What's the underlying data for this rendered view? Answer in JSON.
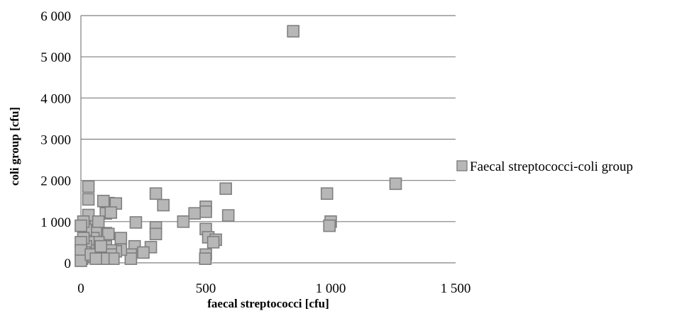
{
  "chart_data": {
    "type": "scatter",
    "title": "",
    "xlabel": "faecal streptococci [cfu]",
    "ylabel": "coli group [cfu]",
    "xlim": [
      0,
      1500
    ],
    "ylim": [
      0,
      6000
    ],
    "x_ticks": [
      0,
      500,
      1000,
      1500
    ],
    "x_tick_labels": [
      "0",
      "500",
      "1 000",
      "1 500"
    ],
    "y_ticks": [
      0,
      1000,
      2000,
      3000,
      4000,
      5000,
      6000
    ],
    "y_tick_labels": [
      "0",
      "1 000",
      "2 000",
      "3 000",
      "4 000",
      "5 000",
      "6 000"
    ],
    "grid": {
      "horizontal": true,
      "vertical": false
    },
    "legend": {
      "position": "right",
      "entries": [
        "Faecal streptococci-coli group"
      ]
    },
    "colors": {
      "marker_fill": "#b7b7b7",
      "marker_stroke": "#7f7f7f",
      "gridline": "#7f7f7f",
      "axis": "#7f7f7f"
    },
    "series": [
      {
        "name": "Faecal streptococci-coli group",
        "marker": "square",
        "points": [
          [
            850,
            5620
          ],
          [
            1260,
            1920
          ],
          [
            985,
            1680
          ],
          [
            1000,
            1000
          ],
          [
            995,
            900
          ],
          [
            580,
            1800
          ],
          [
            590,
            1150
          ],
          [
            500,
            1360
          ],
          [
            500,
            1240
          ],
          [
            455,
            1200
          ],
          [
            410,
            1000
          ],
          [
            500,
            820
          ],
          [
            510,
            620
          ],
          [
            540,
            560
          ],
          [
            530,
            500
          ],
          [
            500,
            200
          ],
          [
            498,
            100
          ],
          [
            300,
            1680
          ],
          [
            330,
            1400
          ],
          [
            300,
            860
          ],
          [
            300,
            700
          ],
          [
            220,
            980
          ],
          [
            280,
            380
          ],
          [
            215,
            400
          ],
          [
            250,
            250
          ],
          [
            200,
            200
          ],
          [
            200,
            100
          ],
          [
            160,
            600
          ],
          [
            160,
            320
          ],
          [
            140,
            280
          ],
          [
            110,
            1450
          ],
          [
            140,
            1440
          ],
          [
            100,
            1200
          ],
          [
            120,
            1220
          ],
          [
            100,
            720
          ],
          [
            110,
            700
          ],
          [
            100,
            400
          ],
          [
            120,
            300
          ],
          [
            120,
            200
          ],
          [
            130,
            100
          ],
          [
            60,
            900
          ],
          [
            60,
            780
          ],
          [
            50,
            600
          ],
          [
            70,
            500
          ],
          [
            80,
            300
          ],
          [
            80,
            200
          ],
          [
            90,
            100
          ],
          [
            30,
            1850
          ],
          [
            30,
            1540
          ],
          [
            30,
            1160
          ],
          [
            30,
            500
          ],
          [
            30,
            300
          ],
          [
            30,
            150
          ],
          [
            20,
            800
          ],
          [
            20,
            400
          ],
          [
            15,
            250
          ],
          [
            10,
            1000
          ],
          [
            10,
            600
          ],
          [
            10,
            200
          ],
          [
            5,
            100
          ],
          [
            0,
            900
          ],
          [
            0,
            500
          ],
          [
            0,
            300
          ],
          [
            0,
            50
          ],
          [
            40,
            200
          ],
          [
            60,
            100
          ],
          [
            70,
            1000
          ],
          [
            90,
            1500
          ],
          [
            80,
            400
          ]
        ]
      }
    ]
  }
}
